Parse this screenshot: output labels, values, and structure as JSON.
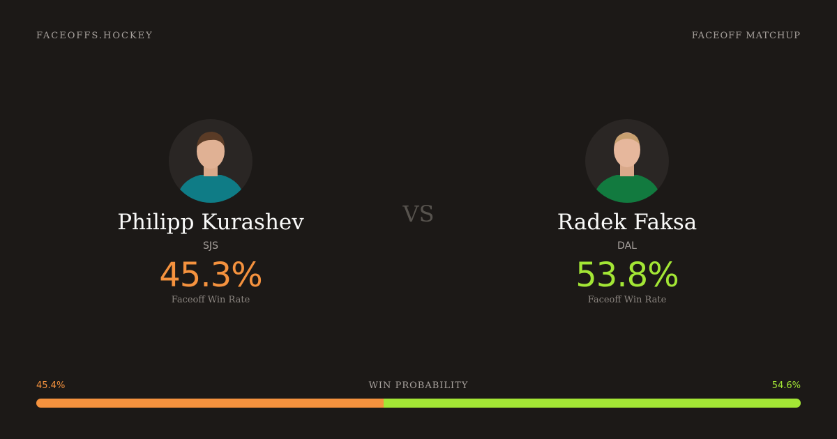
{
  "header": {
    "brand": "FACEOFFS.HOCKEY",
    "label": "FACEOFF MATCHUP"
  },
  "vs": "VS",
  "players": [
    {
      "name": "Philipp Kurashev",
      "team": "SJS",
      "rate": "45.3%",
      "rate_label": "Faceoff Win Rate",
      "color": "#f5923e",
      "jersey": "#0f7c86"
    },
    {
      "name": "Radek Faksa",
      "team": "DAL",
      "rate": "53.8%",
      "rate_label": "Faceoff Win Rate",
      "color": "#a3e635",
      "jersey": "#127a3f"
    }
  ],
  "probability": {
    "label": "WIN PROBABILITY",
    "left": {
      "value": 45.4,
      "label": "45.4%"
    },
    "right": {
      "value": 54.6,
      "label": "54.6%"
    }
  }
}
